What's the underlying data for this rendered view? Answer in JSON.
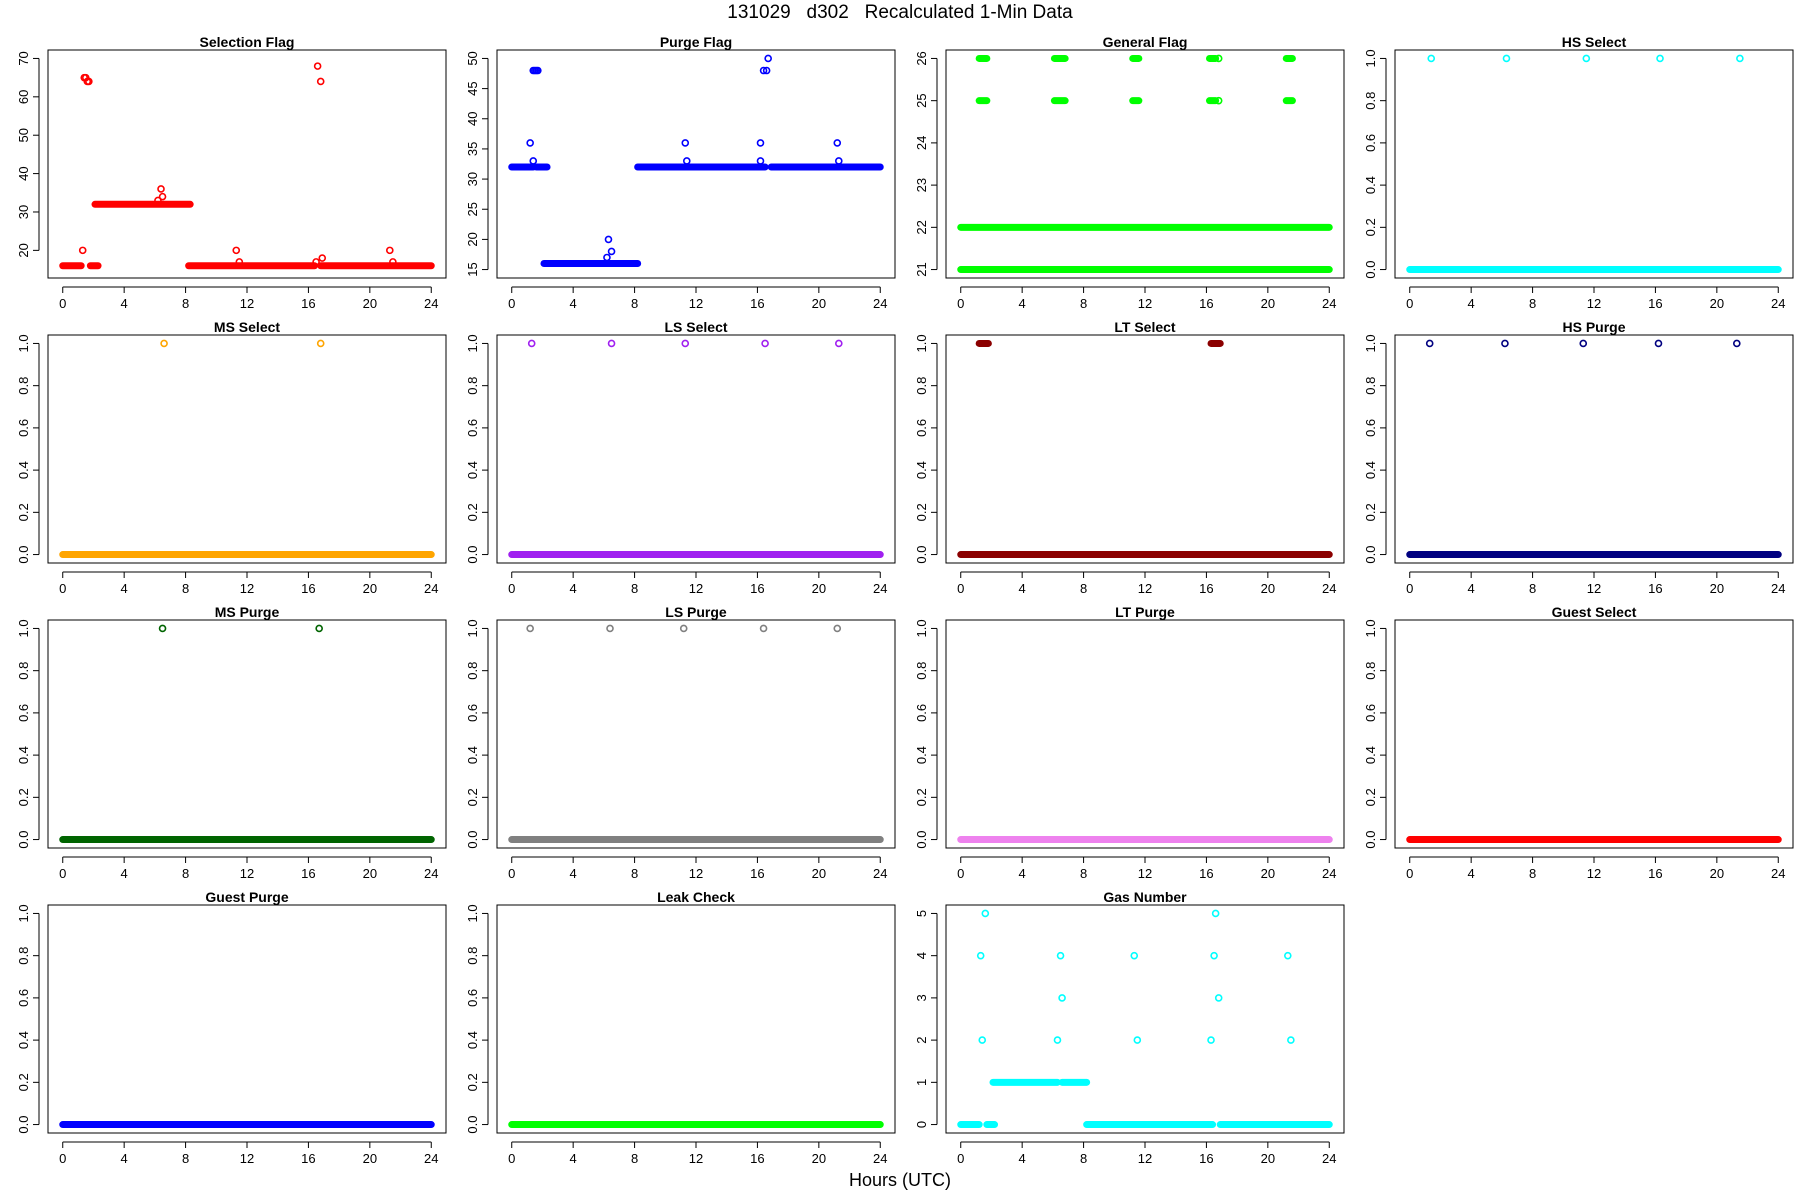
{
  "page": {
    "title": "131029   d302   Recalculated 1-Min Data",
    "xlabel": "Hours (UTC)"
  },
  "chart_data": [
    {
      "type": "scatter",
      "title": "Selection Flag",
      "color": "#ff0000",
      "xlim": [
        0,
        24
      ],
      "ylim": [
        15,
        70
      ],
      "x_ticks": [
        0,
        4,
        8,
        12,
        16,
        20,
        24
      ],
      "y_ticks": [
        20,
        30,
        40,
        50,
        60,
        70
      ],
      "bands": [
        {
          "x": [
            0,
            1.2
          ],
          "y": 16
        },
        {
          "x": [
            1.8,
            2.3
          ],
          "y": 16
        },
        {
          "x": [
            2.1,
            8.3
          ],
          "y": 32
        },
        {
          "x": [
            8.2,
            16.4
          ],
          "y": 16
        },
        {
          "x": [
            16.8,
            24
          ],
          "y": 16
        }
      ],
      "points": [
        [
          1.3,
          20
        ],
        [
          1.4,
          65
        ],
        [
          1.5,
          65
        ],
        [
          1.6,
          64
        ],
        [
          1.7,
          64
        ],
        [
          6.2,
          33
        ],
        [
          6.4,
          36
        ],
        [
          6.5,
          34
        ],
        [
          11.3,
          20
        ],
        [
          11.5,
          17
        ],
        [
          16.5,
          17
        ],
        [
          16.6,
          68
        ],
        [
          16.8,
          64
        ],
        [
          16.9,
          18
        ],
        [
          21.3,
          20
        ],
        [
          21.5,
          17
        ]
      ]
    },
    {
      "type": "scatter",
      "title": "Purge Flag",
      "color": "#0000ff",
      "xlim": [
        0,
        24
      ],
      "ylim": [
        15,
        50
      ],
      "x_ticks": [
        0,
        4,
        8,
        12,
        16,
        20,
        24
      ],
      "y_ticks": [
        15,
        20,
        25,
        30,
        35,
        40,
        45,
        50
      ],
      "bands": [
        {
          "x": [
            0,
            1.4
          ],
          "y": 32
        },
        {
          "x": [
            1.6,
            2.3
          ],
          "y": 32
        },
        {
          "x": [
            2.1,
            8.2
          ],
          "y": 16
        },
        {
          "x": [
            8.2,
            16.5
          ],
          "y": 32
        },
        {
          "x": [
            16.9,
            24
          ],
          "y": 32
        }
      ],
      "points": [
        [
          1.2,
          36
        ],
        [
          1.4,
          33
        ],
        [
          1.4,
          48
        ],
        [
          1.5,
          48
        ],
        [
          1.6,
          48
        ],
        [
          1.7,
          48
        ],
        [
          6.2,
          17
        ],
        [
          6.3,
          20
        ],
        [
          6.5,
          18
        ],
        [
          11.3,
          36
        ],
        [
          11.4,
          33
        ],
        [
          16.2,
          36
        ],
        [
          16.2,
          33
        ],
        [
          16.4,
          48
        ],
        [
          16.6,
          48
        ],
        [
          16.7,
          50
        ],
        [
          21.2,
          36
        ],
        [
          21.3,
          33
        ]
      ]
    },
    {
      "type": "scatter",
      "title": "General Flag",
      "color": "#00ff00",
      "xlim": [
        0,
        24
      ],
      "ylim": [
        21,
        26
      ],
      "x_ticks": [
        0,
        4,
        8,
        12,
        16,
        20,
        24
      ],
      "y_ticks": [
        21,
        22,
        23,
        24,
        25,
        26
      ],
      "bands": [
        {
          "x": [
            0,
            24
          ],
          "y": 21
        },
        {
          "x": [
            0,
            24
          ],
          "y": 22
        },
        {
          "x": [
            1.2,
            1.7
          ],
          "y": 25
        },
        {
          "x": [
            1.2,
            1.7
          ],
          "y": 26
        },
        {
          "x": [
            6.1,
            6.8
          ],
          "y": 25
        },
        {
          "x": [
            6.1,
            6.8
          ],
          "y": 26
        },
        {
          "x": [
            11.2,
            11.6
          ],
          "y": 25
        },
        {
          "x": [
            11.2,
            11.6
          ],
          "y": 26
        },
        {
          "x": [
            16.2,
            16.6
          ],
          "y": 25
        },
        {
          "x": [
            16.2,
            16.6
          ],
          "y": 26
        },
        {
          "x": [
            21.2,
            21.6
          ],
          "y": 25
        },
        {
          "x": [
            21.2,
            21.6
          ],
          "y": 26
        }
      ],
      "points": [
        [
          16.8,
          25
        ],
        [
          16.8,
          26
        ]
      ]
    },
    {
      "type": "scatter",
      "title": "HS Select",
      "color": "#00ffff",
      "xlim": [
        0,
        24
      ],
      "ylim": [
        0,
        1
      ],
      "x_ticks": [
        0,
        4,
        8,
        12,
        16,
        20,
        24
      ],
      "y_ticks": [
        0.0,
        0.2,
        0.4,
        0.6,
        0.8,
        1.0
      ],
      "bands": [
        {
          "x": [
            0,
            24
          ],
          "y": 0
        }
      ],
      "points": [
        [
          1.4,
          1
        ],
        [
          6.3,
          1
        ],
        [
          11.5,
          1
        ],
        [
          16.3,
          1
        ],
        [
          21.5,
          1
        ]
      ]
    },
    {
      "type": "scatter",
      "title": "MS Select",
      "color": "#ffa500",
      "xlim": [
        0,
        24
      ],
      "ylim": [
        0,
        1
      ],
      "x_ticks": [
        0,
        4,
        8,
        12,
        16,
        20,
        24
      ],
      "y_ticks": [
        0.0,
        0.2,
        0.4,
        0.6,
        0.8,
        1.0
      ],
      "bands": [
        {
          "x": [
            0,
            24
          ],
          "y": 0
        }
      ],
      "points": [
        [
          6.6,
          1
        ],
        [
          16.8,
          1
        ]
      ]
    },
    {
      "type": "scatter",
      "title": "LS Select",
      "color": "#a020f0",
      "xlim": [
        0,
        24
      ],
      "ylim": [
        0,
        1
      ],
      "x_ticks": [
        0,
        4,
        8,
        12,
        16,
        20,
        24
      ],
      "y_ticks": [
        0.0,
        0.2,
        0.4,
        0.6,
        0.8,
        1.0
      ],
      "bands": [
        {
          "x": [
            0,
            24
          ],
          "y": 0
        }
      ],
      "points": [
        [
          1.3,
          1
        ],
        [
          6.5,
          1
        ],
        [
          11.3,
          1
        ],
        [
          16.5,
          1
        ],
        [
          21.3,
          1
        ]
      ]
    },
    {
      "type": "scatter",
      "title": "LT Select",
      "color": "#8b0000",
      "xlim": [
        0,
        24
      ],
      "ylim": [
        0,
        1
      ],
      "x_ticks": [
        0,
        4,
        8,
        12,
        16,
        20,
        24
      ],
      "y_ticks": [
        0.0,
        0.2,
        0.4,
        0.6,
        0.8,
        1.0
      ],
      "bands": [
        {
          "x": [
            0,
            24
          ],
          "y": 0
        },
        {
          "x": [
            1.2,
            1.8
          ],
          "y": 1
        },
        {
          "x": [
            16.3,
            16.9
          ],
          "y": 1
        }
      ],
      "points": []
    },
    {
      "type": "scatter",
      "title": "HS Purge",
      "color": "#000080",
      "xlim": [
        0,
        24
      ],
      "ylim": [
        0,
        1
      ],
      "x_ticks": [
        0,
        4,
        8,
        12,
        16,
        20,
        24
      ],
      "y_ticks": [
        0.0,
        0.2,
        0.4,
        0.6,
        0.8,
        1.0
      ],
      "bands": [
        {
          "x": [
            0,
            24
          ],
          "y": 0
        }
      ],
      "points": [
        [
          1.3,
          1
        ],
        [
          6.2,
          1
        ],
        [
          11.3,
          1
        ],
        [
          16.2,
          1
        ],
        [
          21.3,
          1
        ]
      ]
    },
    {
      "type": "scatter",
      "title": "MS Purge",
      "color": "#006400",
      "xlim": [
        0,
        24
      ],
      "ylim": [
        0,
        1
      ],
      "x_ticks": [
        0,
        4,
        8,
        12,
        16,
        20,
        24
      ],
      "y_ticks": [
        0.0,
        0.2,
        0.4,
        0.6,
        0.8,
        1.0
      ],
      "bands": [
        {
          "x": [
            0,
            24
          ],
          "y": 0
        }
      ],
      "points": [
        [
          6.5,
          1
        ],
        [
          16.7,
          1
        ]
      ]
    },
    {
      "type": "scatter",
      "title": "LS Purge",
      "color": "#808080",
      "xlim": [
        0,
        24
      ],
      "ylim": [
        0,
        1
      ],
      "x_ticks": [
        0,
        4,
        8,
        12,
        16,
        20,
        24
      ],
      "y_ticks": [
        0.0,
        0.2,
        0.4,
        0.6,
        0.8,
        1.0
      ],
      "bands": [
        {
          "x": [
            0,
            24
          ],
          "y": 0
        }
      ],
      "points": [
        [
          1.2,
          1
        ],
        [
          6.4,
          1
        ],
        [
          11.2,
          1
        ],
        [
          16.4,
          1
        ],
        [
          21.2,
          1
        ]
      ]
    },
    {
      "type": "scatter",
      "title": "LT Purge",
      "color": "#ee82ee",
      "xlim": [
        0,
        24
      ],
      "ylim": [
        0,
        1
      ],
      "x_ticks": [
        0,
        4,
        8,
        12,
        16,
        20,
        24
      ],
      "y_ticks": [
        0.0,
        0.2,
        0.4,
        0.6,
        0.8,
        1.0
      ],
      "bands": [
        {
          "x": [
            0,
            24
          ],
          "y": 0
        }
      ],
      "points": []
    },
    {
      "type": "scatter",
      "title": "Guest Select",
      "color": "#ff0000",
      "xlim": [
        0,
        24
      ],
      "ylim": [
        0,
        1
      ],
      "x_ticks": [
        0,
        4,
        8,
        12,
        16,
        20,
        24
      ],
      "y_ticks": [
        0.0,
        0.2,
        0.4,
        0.6,
        0.8,
        1.0
      ],
      "bands": [
        {
          "x": [
            0,
            24
          ],
          "y": 0
        }
      ],
      "points": []
    },
    {
      "type": "scatter",
      "title": "Guest Purge",
      "color": "#0000ff",
      "xlim": [
        0,
        24
      ],
      "ylim": [
        0,
        1
      ],
      "x_ticks": [
        0,
        4,
        8,
        12,
        16,
        20,
        24
      ],
      "y_ticks": [
        0.0,
        0.2,
        0.4,
        0.6,
        0.8,
        1.0
      ],
      "bands": [
        {
          "x": [
            0,
            24
          ],
          "y": 0
        }
      ],
      "points": []
    },
    {
      "type": "scatter",
      "title": "Leak Check",
      "color": "#00ff00",
      "xlim": [
        0,
        24
      ],
      "ylim": [
        0,
        1
      ],
      "x_ticks": [
        0,
        4,
        8,
        12,
        16,
        20,
        24
      ],
      "y_ticks": [
        0.0,
        0.2,
        0.4,
        0.6,
        0.8,
        1.0
      ],
      "bands": [
        {
          "x": [
            0,
            24
          ],
          "y": 0
        }
      ],
      "points": []
    },
    {
      "type": "scatter",
      "title": "Gas Number",
      "color": "#00ffff",
      "xlim": [
        0,
        24
      ],
      "ylim": [
        0,
        5
      ],
      "x_ticks": [
        0,
        4,
        8,
        12,
        16,
        20,
        24
      ],
      "y_ticks": [
        0,
        1,
        2,
        3,
        4,
        5
      ],
      "bands": [
        {
          "x": [
            0,
            1.2
          ],
          "y": 0
        },
        {
          "x": [
            1.7,
            2.2
          ],
          "y": 0
        },
        {
          "x": [
            2.1,
            6.3
          ],
          "y": 1
        },
        {
          "x": [
            6.6,
            8.2
          ],
          "y": 1
        },
        {
          "x": [
            8.2,
            16.4
          ],
          "y": 0
        },
        {
          "x": [
            16.9,
            24
          ],
          "y": 0
        }
      ],
      "points": [
        [
          1.3,
          4
        ],
        [
          1.4,
          2
        ],
        [
          1.6,
          5
        ],
        [
          6.3,
          2
        ],
        [
          6.5,
          4
        ],
        [
          6.6,
          3
        ],
        [
          11.3,
          4
        ],
        [
          11.5,
          2
        ],
        [
          16.3,
          2
        ],
        [
          16.5,
          4
        ],
        [
          16.6,
          5
        ],
        [
          16.8,
          3
        ],
        [
          21.3,
          4
        ],
        [
          21.5,
          2
        ]
      ]
    }
  ]
}
